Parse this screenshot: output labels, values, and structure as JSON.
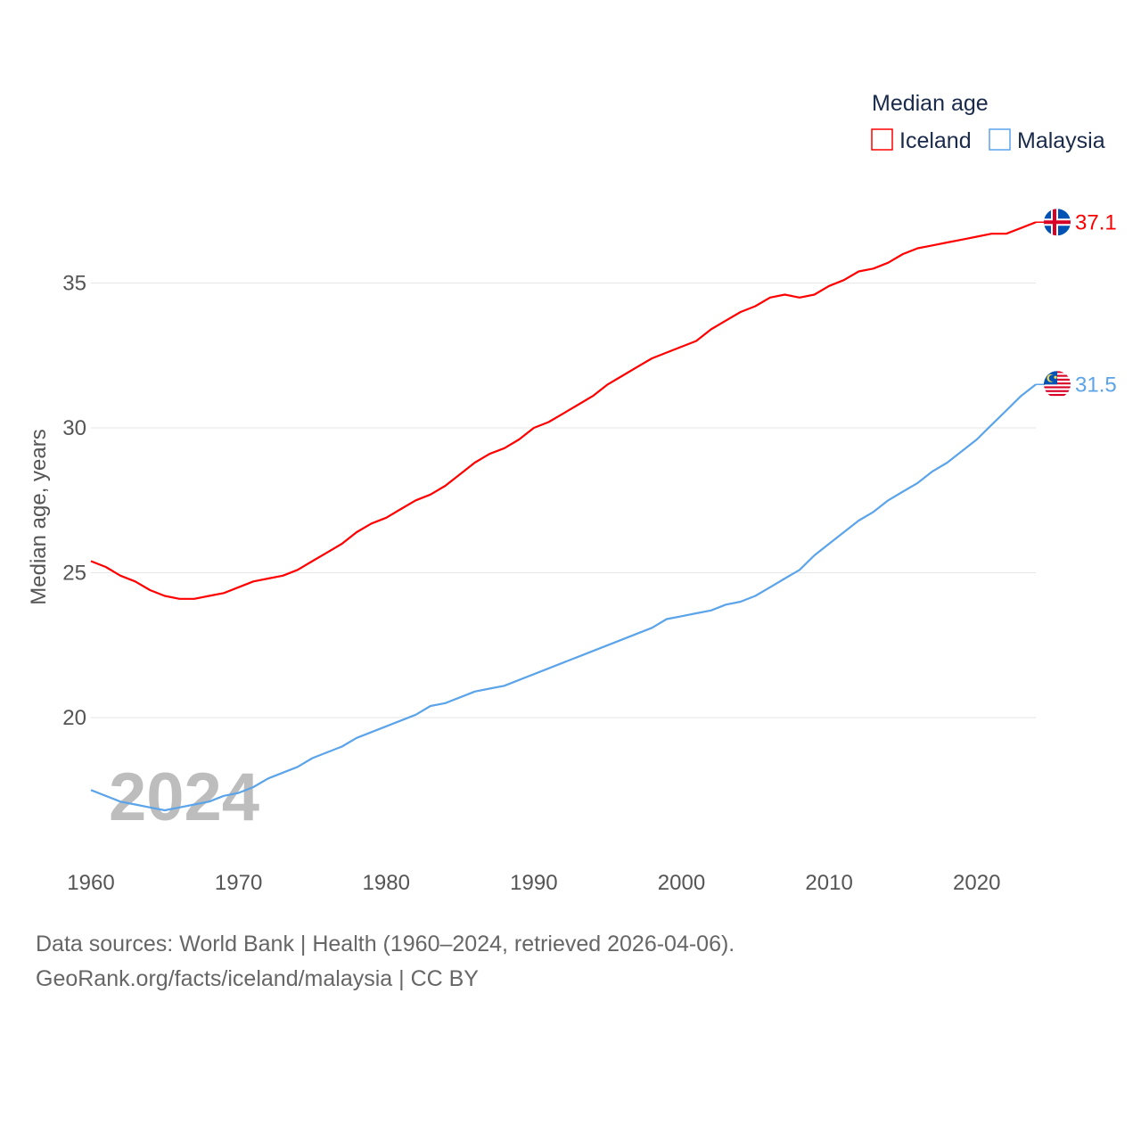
{
  "chart_data": {
    "type": "line",
    "title": "Median age",
    "ylabel": "Median age, years",
    "xlabel": "",
    "xlim": [
      1960,
      2024
    ],
    "ylim": [
      15.5,
      38.5
    ],
    "grid": true,
    "legend_placement": "top-right",
    "x_ticks": [
      1960,
      1970,
      1980,
      1990,
      2000,
      2010,
      2020
    ],
    "y_ticks": [
      20,
      25,
      30,
      35
    ],
    "year_watermark": "2024",
    "x": [
      1960,
      1961,
      1962,
      1963,
      1964,
      1965,
      1966,
      1967,
      1968,
      1969,
      1970,
      1971,
      1972,
      1973,
      1974,
      1975,
      1976,
      1977,
      1978,
      1979,
      1980,
      1981,
      1982,
      1983,
      1984,
      1985,
      1986,
      1987,
      1988,
      1989,
      1990,
      1991,
      1992,
      1993,
      1994,
      1995,
      1996,
      1997,
      1998,
      1999,
      2000,
      2001,
      2002,
      2003,
      2004,
      2005,
      2006,
      2007,
      2008,
      2009,
      2010,
      2011,
      2012,
      2013,
      2014,
      2015,
      2016,
      2017,
      2018,
      2019,
      2020,
      2021,
      2022,
      2023,
      2024
    ],
    "series": [
      {
        "name": "Iceland",
        "color": "#ff0000",
        "end_label": "37.1",
        "flag": "iceland-flag",
        "values": [
          25.4,
          25.2,
          24.9,
          24.7,
          24.4,
          24.2,
          24.1,
          24.1,
          24.2,
          24.3,
          24.5,
          24.7,
          24.8,
          24.9,
          25.1,
          25.4,
          25.7,
          26.0,
          26.4,
          26.7,
          26.9,
          27.2,
          27.5,
          27.7,
          28.0,
          28.4,
          28.8,
          29.1,
          29.3,
          29.6,
          30.0,
          30.2,
          30.5,
          30.8,
          31.1,
          31.5,
          31.8,
          32.1,
          32.4,
          32.6,
          32.8,
          33.0,
          33.4,
          33.7,
          34.0,
          34.2,
          34.5,
          34.6,
          34.5,
          34.6,
          34.9,
          35.1,
          35.4,
          35.5,
          35.7,
          36.0,
          36.2,
          36.3,
          36.4,
          36.5,
          36.6,
          36.7,
          36.7,
          36.9,
          37.1
        ]
      },
      {
        "name": "Malaysia",
        "color": "#5ba4ea",
        "end_label": "31.5",
        "flag": "malaysia-flag",
        "values": [
          17.5,
          17.3,
          17.1,
          17.0,
          16.9,
          16.8,
          16.9,
          17.0,
          17.1,
          17.3,
          17.4,
          17.6,
          17.9,
          18.1,
          18.3,
          18.6,
          18.8,
          19.0,
          19.3,
          19.5,
          19.7,
          19.9,
          20.1,
          20.4,
          20.5,
          20.7,
          20.9,
          21.0,
          21.1,
          21.3,
          21.5,
          21.7,
          21.9,
          22.1,
          22.3,
          22.5,
          22.7,
          22.9,
          23.1,
          23.4,
          23.5,
          23.6,
          23.7,
          23.9,
          24.0,
          24.2,
          24.5,
          24.8,
          25.1,
          25.6,
          26.0,
          26.4,
          26.8,
          27.1,
          27.5,
          27.8,
          28.1,
          28.5,
          28.8,
          29.2,
          29.6,
          30.1,
          30.6,
          31.1,
          31.5
        ]
      }
    ]
  },
  "footer": {
    "line1": "Data sources: World Bank | Health (1960–2024, retrieved 2026-04-06).",
    "line2": "GeoRank.org/facts/iceland/malaysia | CC BY"
  }
}
